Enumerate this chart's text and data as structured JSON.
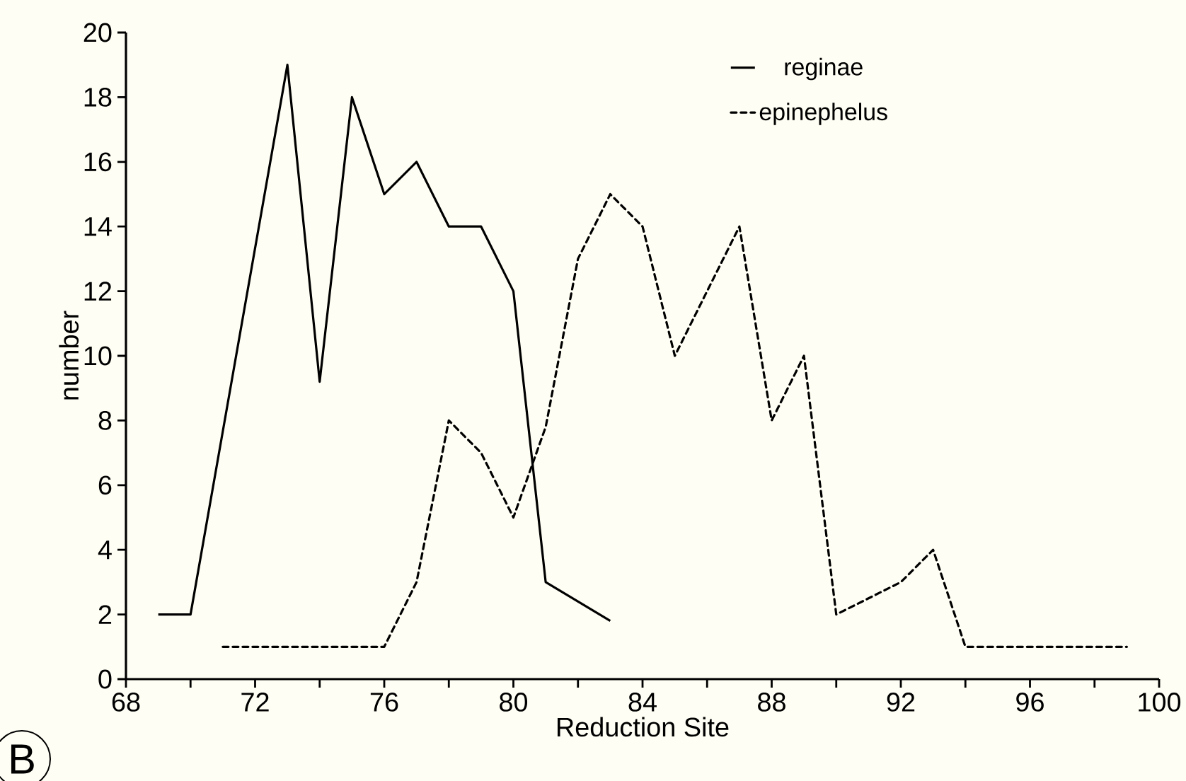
{
  "chart_data": {
    "type": "line",
    "xlabel": "Reduction Site",
    "ylabel": "number",
    "xlim": [
      68,
      100
    ],
    "xticks": [
      68,
      {
        "value": 70,
        "label": null
      },
      72,
      {
        "value": 74,
        "label": null
      },
      76,
      {
        "value": 78,
        "label": null
      },
      80,
      {
        "value": 82,
        "label": null
      },
      84,
      {
        "value": 86,
        "label": null
      },
      88,
      {
        "value": 90,
        "label": null
      },
      92,
      {
        "value": 94,
        "label": null
      },
      96,
      {
        "value": 98,
        "label": null
      },
      100
    ],
    "ylim": [
      0,
      20
    ],
    "yticks": [
      0,
      2,
      4,
      6,
      8,
      10,
      12,
      14,
      16,
      18,
      20
    ],
    "grid": false,
    "legend": "top right",
    "marker": "none",
    "annotations": [
      "B"
    ],
    "series": [
      {
        "name": "reginae",
        "color": "#000000",
        "line_style": "solid",
        "x": [
          69,
          70,
          73,
          74,
          75,
          76,
          77,
          78,
          79,
          80,
          81,
          83
        ],
        "values": [
          2,
          2,
          19,
          9.2,
          18,
          15,
          16,
          14,
          14,
          12,
          3,
          1.8
        ]
      },
      {
        "name": "epinephelus",
        "color": "#000000",
        "line_style": "dotted",
        "x": [
          71,
          76,
          77,
          78,
          79,
          80,
          81,
          82,
          83,
          84,
          85,
          87,
          88,
          89,
          90,
          92,
          93,
          94,
          99
        ],
        "values": [
          1,
          1,
          3,
          8,
          7,
          5,
          7.8,
          13,
          15,
          14,
          10,
          14,
          8,
          10,
          2,
          3,
          4,
          1,
          1
        ]
      }
    ]
  }
}
